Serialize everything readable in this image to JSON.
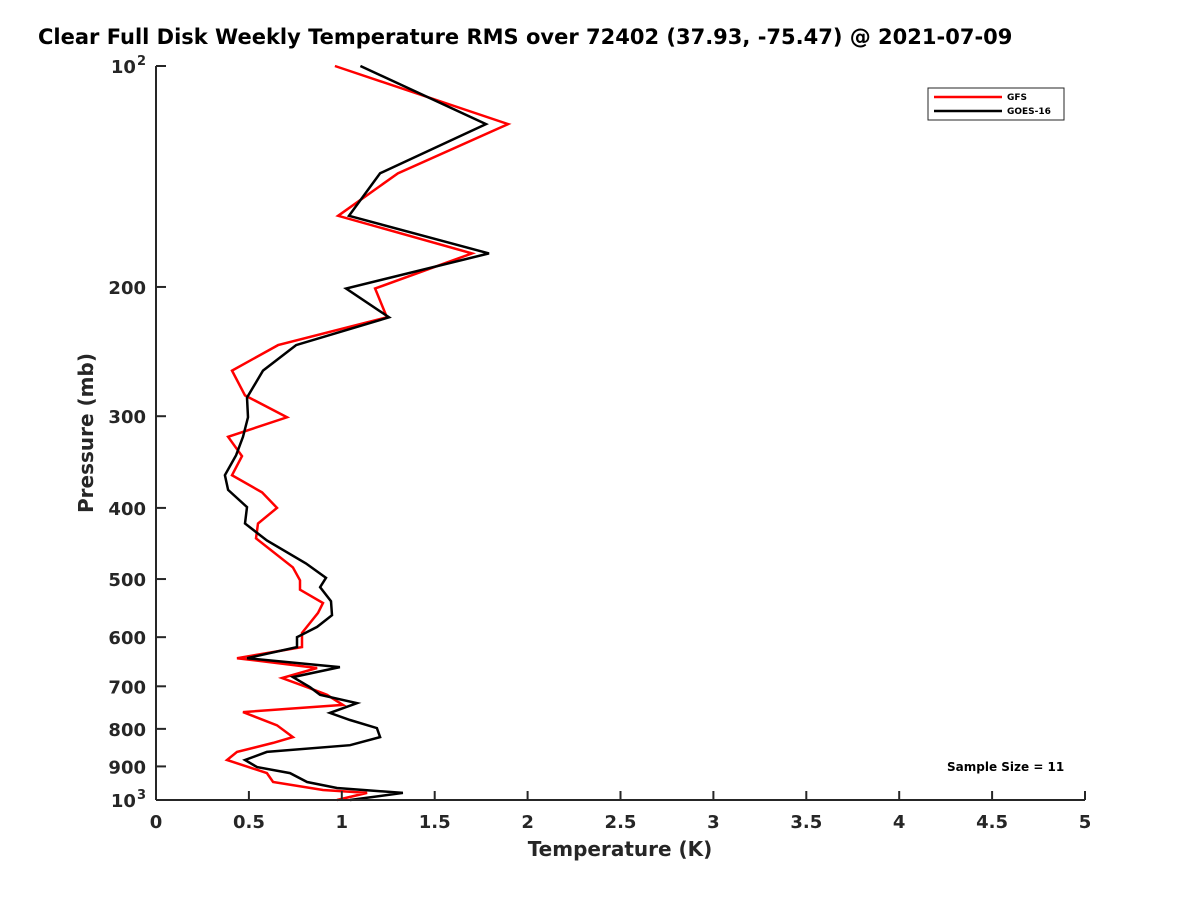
{
  "chart_data": {
    "type": "line",
    "title": "Clear Full Disk Weekly Temperature RMS over 72402 (37.93, -75.47) @ 2021-07-09",
    "xlabel": "Temperature (K)",
    "ylabel": "Pressure (mb)",
    "xlim": [
      0,
      5
    ],
    "ylim": [
      100,
      1000
    ],
    "yscale": "log",
    "yreversed": true,
    "grid": false,
    "legend_position": "top-right",
    "x_ticks": [
      "0",
      "0.5",
      "1",
      "1.5",
      "2",
      "2.5",
      "3",
      "3.5",
      "4",
      "4.5",
      "5"
    ],
    "x_tick_values": [
      0,
      0.5,
      1,
      1.5,
      2,
      2.5,
      3,
      3.5,
      4,
      4.5,
      5
    ],
    "y_ticks": [
      {
        "value": 100,
        "base": "10",
        "exp": "2"
      },
      {
        "value": 200,
        "label": "200"
      },
      {
        "value": 300,
        "label": "300"
      },
      {
        "value": 400,
        "label": "400"
      },
      {
        "value": 500,
        "label": "500"
      },
      {
        "value": 600,
        "label": "600"
      },
      {
        "value": 700,
        "label": "700"
      },
      {
        "value": 800,
        "label": "800"
      },
      {
        "value": 900,
        "label": "900"
      },
      {
        "value": 1000,
        "base": "10",
        "exp": "3"
      }
    ],
    "annotation": "Sample Size = 11",
    "series": [
      {
        "name": "GFS",
        "color": "#ff0000",
        "points": [
          [
            0.963,
            100
          ],
          [
            1.895,
            120
          ],
          [
            1.302,
            140
          ],
          [
            0.98,
            160
          ],
          [
            1.701,
            180
          ],
          [
            1.179,
            201
          ],
          [
            1.243,
            220
          ],
          [
            0.657,
            240
          ],
          [
            0.409,
            260
          ],
          [
            0.479,
            281
          ],
          [
            0.705,
            301
          ],
          [
            0.388,
            320
          ],
          [
            0.463,
            340
          ],
          [
            0.409,
            361
          ],
          [
            0.571,
            381
          ],
          [
            0.651,
            400
          ],
          [
            0.549,
            420
          ],
          [
            0.538,
            440
          ],
          [
            0.737,
            482
          ],
          [
            0.775,
            502
          ],
          [
            0.775,
            517
          ],
          [
            0.899,
            539
          ],
          [
            0.872,
            556
          ],
          [
            0.786,
            592
          ],
          [
            0.786,
            619
          ],
          [
            0.436,
            641
          ],
          [
            0.867,
            661
          ],
          [
            0.678,
            682
          ],
          [
            0.813,
            702
          ],
          [
            0.92,
            719
          ],
          [
            1.006,
            742
          ],
          [
            0.468,
            759
          ],
          [
            0.651,
            791
          ],
          [
            0.737,
            821
          ],
          [
            0.63,
            836
          ],
          [
            0.436,
            860
          ],
          [
            0.382,
            882
          ],
          [
            0.597,
            919
          ],
          [
            0.63,
            945
          ],
          [
            0.899,
            969
          ],
          [
            1.136,
            978
          ],
          [
            0.974,
            1000
          ]
        ]
      },
      {
        "name": "GOES-16",
        "color": "#000000",
        "points": [
          [
            1.1,
            100
          ],
          [
            1.776,
            120
          ],
          [
            1.206,
            140
          ],
          [
            1.039,
            160
          ],
          [
            1.792,
            180
          ],
          [
            1.023,
            201
          ],
          [
            1.254,
            220
          ],
          [
            0.754,
            240
          ],
          [
            0.576,
            260
          ],
          [
            0.49,
            283
          ],
          [
            0.495,
            301
          ],
          [
            0.468,
            320
          ],
          [
            0.431,
            339
          ],
          [
            0.371,
            361
          ],
          [
            0.388,
            378
          ],
          [
            0.49,
            399
          ],
          [
            0.479,
            420
          ],
          [
            0.597,
            443
          ],
          [
            0.807,
            476
          ],
          [
            0.915,
            498
          ],
          [
            0.883,
            513
          ],
          [
            0.942,
            536
          ],
          [
            0.947,
            560
          ],
          [
            0.867,
            581
          ],
          [
            0.759,
            600
          ],
          [
            0.759,
            619
          ],
          [
            0.49,
            641
          ],
          [
            0.99,
            659
          ],
          [
            0.737,
            680
          ],
          [
            0.829,
            702
          ],
          [
            0.883,
            719
          ],
          [
            1.082,
            738
          ],
          [
            0.936,
            761
          ],
          [
            1.044,
            778
          ],
          [
            1.189,
            798
          ],
          [
            1.206,
            821
          ],
          [
            1.044,
            842
          ],
          [
            0.597,
            860
          ],
          [
            0.479,
            882
          ],
          [
            0.544,
            902
          ],
          [
            0.721,
            919
          ],
          [
            0.813,
            945
          ],
          [
            0.974,
            963
          ],
          [
            1.329,
            978
          ],
          [
            1.044,
            1000
          ]
        ]
      }
    ]
  }
}
